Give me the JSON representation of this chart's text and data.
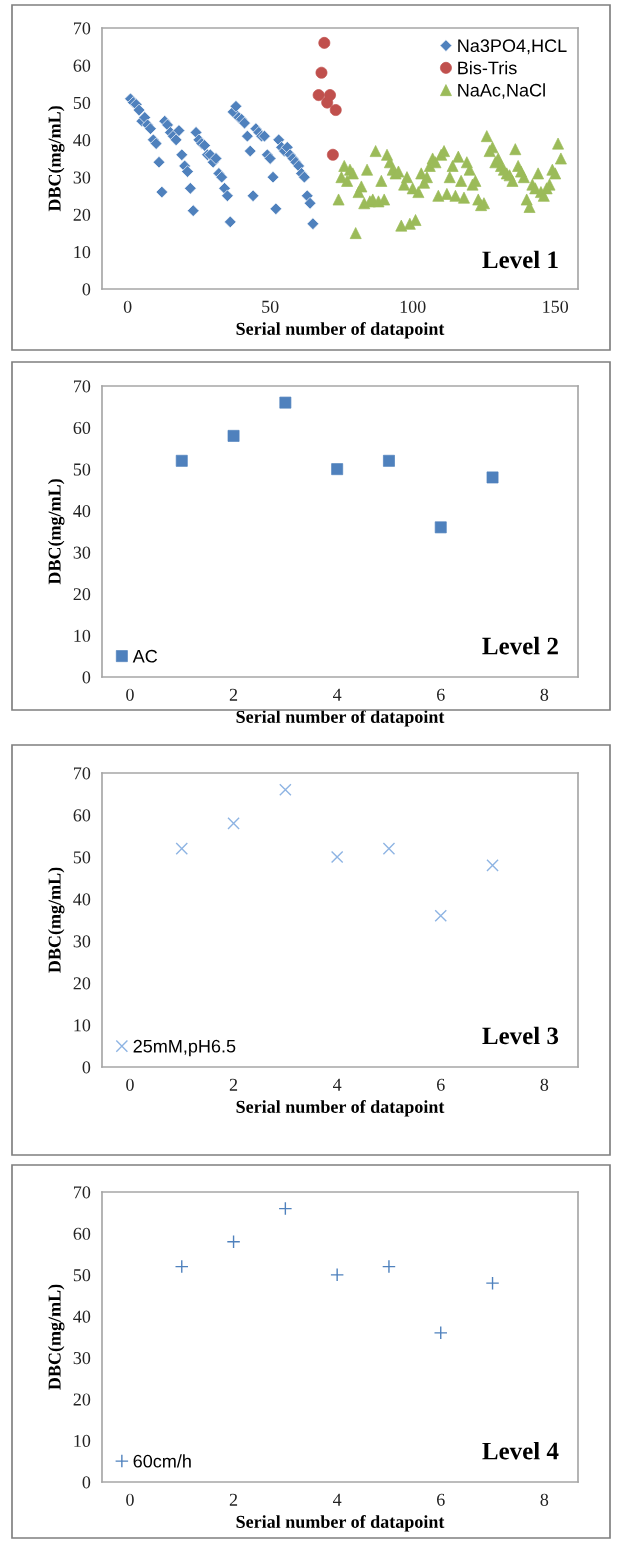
{
  "chart_data": [
    {
      "type": "scatter",
      "xlabel": "Serial number of datapoint",
      "ylabel": "DBC(mg/mL)",
      "xlim": [
        -9,
        158
      ],
      "ylim": [
        0,
        70
      ],
      "xticks": [
        0,
        50,
        100,
        150
      ],
      "yticks": [
        0,
        10,
        20,
        30,
        40,
        50,
        60,
        70
      ],
      "legend": "top right",
      "grid": false,
      "annotations": [
        "Level 1"
      ],
      "series": [
        {
          "name": "Na3PO4,HCL",
          "color": "#4f81bd",
          "marker": "diamond",
          "x": [
            1,
            2,
            3,
            4,
            5,
            6,
            7,
            8,
            9,
            10,
            11,
            12,
            13,
            14,
            15,
            16,
            17,
            18,
            19,
            20,
            21,
            22,
            23,
            24,
            25,
            26,
            27,
            28,
            29,
            30,
            31,
            32,
            33,
            34,
            35,
            36,
            37,
            38,
            39,
            40,
            41,
            42,
            43,
            44,
            45,
            46,
            47,
            48,
            49,
            50,
            51,
            52,
            53,
            54,
            55,
            56,
            57,
            58,
            59,
            60,
            61,
            62,
            63,
            64,
            65
          ],
          "values": [
            51,
            50,
            49.5,
            48,
            45,
            46,
            44,
            43,
            40,
            39,
            34,
            26,
            45,
            44,
            42,
            41,
            40,
            42.5,
            36,
            33,
            31.5,
            27,
            21,
            42,
            40,
            39,
            38.5,
            36,
            36,
            34,
            35,
            31,
            30,
            27,
            25,
            18,
            47.5,
            49,
            46,
            45.5,
            44.5,
            41,
            37,
            25,
            43,
            42,
            41,
            41,
            36,
            35,
            30,
            21.5,
            40,
            38,
            37,
            38,
            36,
            35,
            34,
            33,
            31,
            30,
            25,
            23,
            17.5
          ]
        },
        {
          "name": "Bis-Tris",
          "color": "#c0504d",
          "marker": "circle",
          "x": [
            67,
            68,
            69,
            70,
            71,
            72,
            73
          ],
          "values": [
            52,
            58,
            66,
            50,
            52,
            36,
            48
          ]
        },
        {
          "name": "NaAc,NaCl",
          "color": "#9bbb59",
          "marker": "triangle",
          "x": [
            74,
            75,
            76,
            77,
            78,
            79,
            80,
            81,
            82,
            83,
            84,
            85,
            86,
            87,
            88,
            89,
            90,
            91,
            92,
            93,
            94,
            95,
            96,
            97,
            98,
            99,
            100,
            101,
            102,
            103,
            104,
            105,
            106,
            107,
            108,
            109,
            110,
            111,
            112,
            113,
            114,
            115,
            116,
            117,
            118,
            119,
            120,
            121,
            122,
            123,
            124,
            125,
            126,
            127,
            128,
            129,
            130,
            131,
            132,
            133,
            134,
            135,
            136,
            137,
            138,
            139,
            140,
            141,
            142,
            143,
            144,
            145,
            146,
            147,
            148,
            149,
            150,
            151,
            152
          ],
          "values": [
            24,
            30,
            33,
            29,
            32,
            31,
            15,
            26,
            27.5,
            23,
            32,
            23.5,
            24,
            37,
            23.5,
            29,
            24,
            36,
            34,
            32,
            31,
            31.5,
            17,
            28,
            30,
            17.5,
            27,
            18.5,
            26,
            31,
            28.5,
            30,
            33,
            35,
            34,
            25,
            36,
            37,
            25.5,
            30,
            33,
            25,
            35.5,
            29,
            24.5,
            34,
            32,
            28,
            29,
            24,
            22.5,
            23,
            41,
            37,
            38,
            34,
            35,
            33,
            32,
            31,
            30.5,
            29,
            37.5,
            33,
            31.5,
            30,
            24,
            22,
            28,
            27,
            31,
            26,
            25,
            27,
            28,
            32,
            31,
            39,
            35
          ]
        }
      ]
    },
    {
      "type": "scatter",
      "xlabel": "Serial number of datapoint",
      "ylabel": "DBC(mg/mL)",
      "xlim": [
        -0.54,
        8.65
      ],
      "ylim": [
        0,
        70
      ],
      "xticks": [
        0,
        2,
        4,
        6,
        8
      ],
      "yticks": [
        0,
        10,
        20,
        30,
        40,
        50,
        60,
        70
      ],
      "legend": "bottom left",
      "grid": false,
      "annotations": [
        "Level 2"
      ],
      "series": [
        {
          "name": "AC",
          "color": "#4f81bd",
          "marker": "square",
          "x": [
            1,
            2,
            3,
            4,
            5,
            6,
            7
          ],
          "values": [
            52,
            58,
            66,
            50,
            52,
            36,
            48
          ]
        }
      ]
    },
    {
      "type": "scatter",
      "xlabel": "Serial number of datapoint",
      "ylabel": "DBC(mg/mL)",
      "xlim": [
        -0.54,
        8.65
      ],
      "ylim": [
        0,
        70
      ],
      "xticks": [
        0,
        2,
        4,
        6,
        8
      ],
      "yticks": [
        0,
        10,
        20,
        30,
        40,
        50,
        60,
        70
      ],
      "legend": "bottom left",
      "grid": false,
      "annotations": [
        "Level 3"
      ],
      "series": [
        {
          "name": "25mM,pH6.5",
          "color": "#8eb4e3",
          "marker": "cross",
          "x": [
            1,
            2,
            3,
            4,
            5,
            6,
            7
          ],
          "values": [
            52,
            58,
            66,
            50,
            52,
            36,
            48
          ]
        }
      ]
    },
    {
      "type": "scatter",
      "xlabel": "Serial number of datapoint",
      "ylabel": "DBC(mg/mL)",
      "xlim": [
        -0.54,
        8.65
      ],
      "ylim": [
        0,
        70
      ],
      "xticks": [
        0,
        2,
        4,
        6,
        8
      ],
      "yticks": [
        0,
        10,
        20,
        30,
        40,
        50,
        60,
        70
      ],
      "legend": "bottom left",
      "grid": false,
      "annotations": [
        "Level 4"
      ],
      "series": [
        {
          "name": "60cm/h",
          "color": "#4f81bd",
          "marker": "plus",
          "x": [
            1,
            2,
            3,
            4,
            5,
            6,
            7
          ],
          "values": [
            52,
            58,
            66,
            50,
            52,
            36,
            48
          ]
        }
      ]
    }
  ]
}
